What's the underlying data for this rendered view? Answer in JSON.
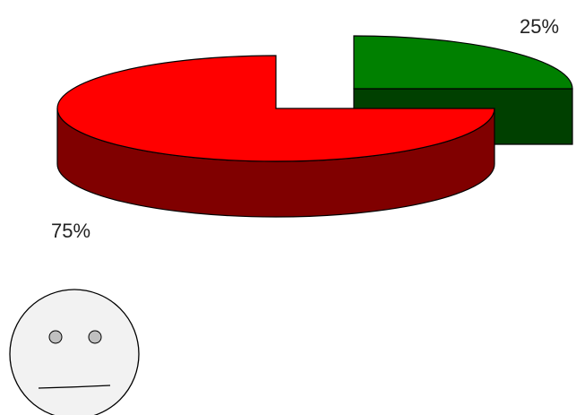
{
  "chart_data": {
    "type": "pie",
    "style": "3d-exploded",
    "slices": [
      {
        "label": "75%",
        "value": 75,
        "top_color": "#ff0000",
        "side_color": "#800000"
      },
      {
        "label": "25%",
        "value": 25,
        "top_color": "#008000",
        "side_color": "#004000"
      }
    ],
    "exploded_slice": 1
  },
  "face": {
    "icon": "neutral-face-icon",
    "color": "#f2f2f2",
    "eye_color": "#c0c0c0"
  }
}
